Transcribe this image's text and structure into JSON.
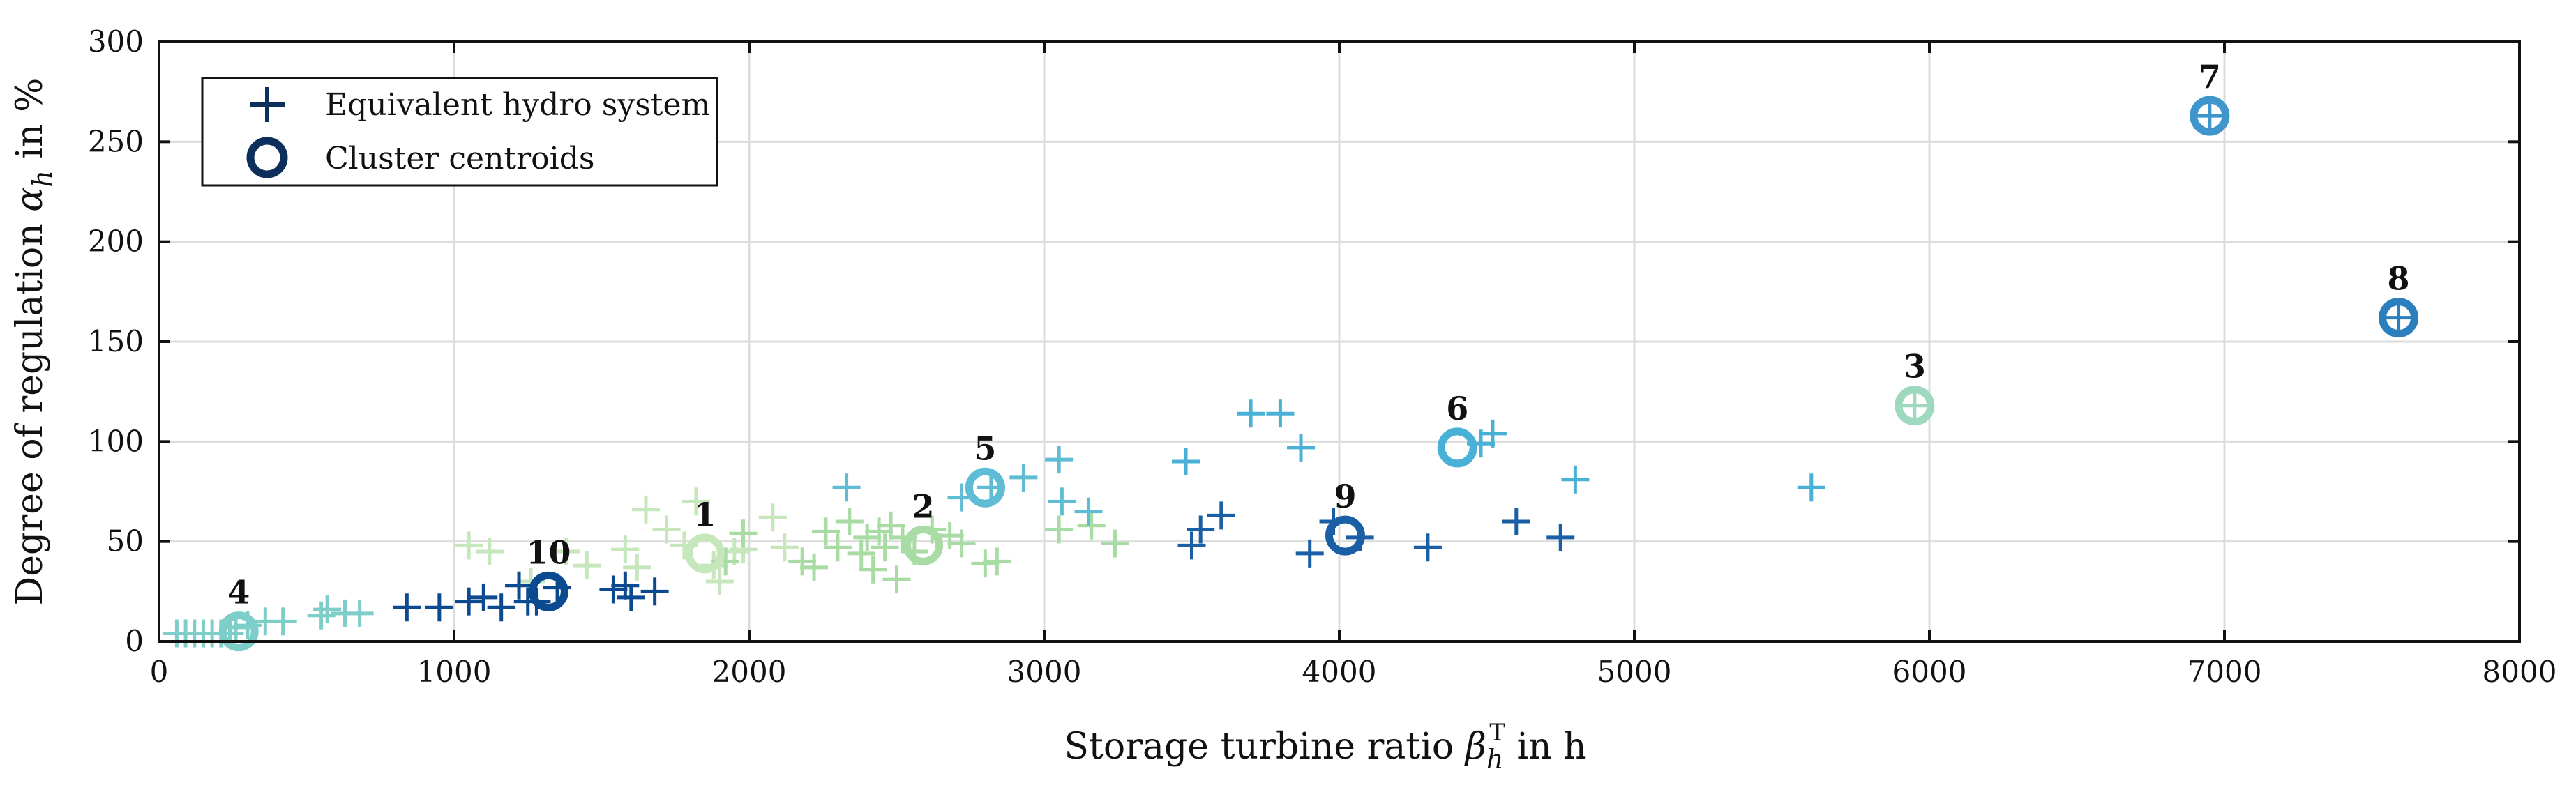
{
  "chart_data": {
    "type": "scatter",
    "xlabel": "Storage turbine ratio β_h^T in h",
    "ylabel": "Degree of regulation α_h in %",
    "xlim": [
      0,
      8000
    ],
    "ylim": [
      0,
      300
    ],
    "xticks": [
      0,
      1000,
      2000,
      3000,
      4000,
      5000,
      6000,
      7000,
      8000
    ],
    "yticks": [
      0,
      50,
      100,
      150,
      200,
      250,
      300
    ],
    "grid": true,
    "legend_placement": "top-left",
    "legend": [
      {
        "name": "Equivalent hydro system",
        "marker": "plus"
      },
      {
        "name": "Cluster centroids",
        "marker": "ring"
      }
    ],
    "series": [
      {
        "cluster": 1,
        "color": "#c6e6bc",
        "points": [
          [
            1050,
            48
          ],
          [
            1120,
            45
          ],
          [
            1260,
            30
          ],
          [
            1380,
            45
          ],
          [
            1450,
            38
          ],
          [
            1580,
            46
          ],
          [
            1620,
            37
          ],
          [
            1650,
            66
          ],
          [
            1720,
            56
          ],
          [
            1780,
            48
          ],
          [
            1820,
            70
          ],
          [
            1880,
            38
          ],
          [
            1900,
            30
          ],
          [
            1950,
            45
          ],
          [
            1980,
            46
          ],
          [
            2080,
            62
          ],
          [
            2120,
            47
          ]
        ]
      },
      {
        "cluster": 2,
        "color": "#a9dca5",
        "points": [
          [
            2180,
            40
          ],
          [
            2220,
            37
          ],
          [
            2260,
            55
          ],
          [
            2300,
            47
          ],
          [
            2340,
            60
          ],
          [
            2380,
            44
          ],
          [
            2400,
            52
          ],
          [
            2420,
            36
          ],
          [
            2440,
            55
          ],
          [
            2460,
            47
          ],
          [
            2480,
            58
          ],
          [
            2500,
            31
          ],
          [
            2520,
            52
          ],
          [
            2560,
            45
          ],
          [
            2620,
            56
          ],
          [
            2680,
            53
          ],
          [
            2720,
            49
          ],
          [
            2800,
            39
          ],
          [
            2840,
            40
          ],
          [
            3050,
            56
          ],
          [
            3160,
            58
          ],
          [
            3240,
            49
          ],
          [
            1920,
            40
          ],
          [
            1980,
            54
          ]
        ]
      },
      {
        "cluster": 3,
        "color": "#9ed9bf",
        "points": [
          [
            5950,
            118
          ]
        ]
      },
      {
        "cluster": 4,
        "color": "#7dcdc9",
        "points": [
          [
            60,
            4
          ],
          [
            90,
            4
          ],
          [
            120,
            4
          ],
          [
            150,
            4
          ],
          [
            180,
            4
          ],
          [
            210,
            4
          ],
          [
            240,
            4
          ],
          [
            260,
            7
          ],
          [
            300,
            8
          ],
          [
            360,
            10
          ],
          [
            420,
            10
          ],
          [
            550,
            13
          ],
          [
            570,
            16
          ],
          [
            630,
            14
          ],
          [
            680,
            14
          ]
        ]
      },
      {
        "cluster": 5,
        "color": "#5ebcd4",
        "points": [
          [
            2330,
            77
          ],
          [
            2720,
            72
          ],
          [
            2820,
            77
          ],
          [
            2930,
            82
          ],
          [
            3050,
            91
          ],
          [
            3060,
            70
          ],
          [
            3150,
            65
          ]
        ]
      },
      {
        "cluster": 6,
        "color": "#4ab1d6",
        "points": [
          [
            3480,
            90
          ],
          [
            3700,
            114
          ],
          [
            3800,
            114
          ],
          [
            3870,
            97
          ],
          [
            4480,
            99
          ],
          [
            4520,
            104
          ],
          [
            4800,
            81
          ],
          [
            5600,
            77
          ]
        ]
      },
      {
        "cluster": 7,
        "color": "#3e96cc",
        "points": [
          [
            6950,
            263
          ]
        ]
      },
      {
        "cluster": 8,
        "color": "#2b7fbf",
        "points": [
          [
            7590,
            162
          ]
        ]
      },
      {
        "cluster": 9,
        "color": "#1a5fa5",
        "points": [
          [
            3500,
            48
          ],
          [
            3530,
            56
          ],
          [
            3600,
            63
          ],
          [
            3900,
            44
          ],
          [
            3980,
            60
          ],
          [
            4070,
            52
          ],
          [
            4300,
            47
          ],
          [
            4600,
            60
          ],
          [
            4750,
            52
          ]
        ]
      },
      {
        "cluster": 10,
        "color": "#0c4a90",
        "points": [
          [
            840,
            17
          ],
          [
            950,
            17
          ],
          [
            1050,
            20
          ],
          [
            1100,
            22
          ],
          [
            1160,
            17
          ],
          [
            1220,
            28
          ],
          [
            1250,
            20
          ],
          [
            1280,
            20
          ],
          [
            1350,
            27
          ],
          [
            1540,
            26
          ],
          [
            1580,
            28
          ],
          [
            1600,
            22
          ],
          [
            1680,
            25
          ]
        ]
      }
    ],
    "centroids": [
      {
        "label": "1",
        "x": 1850,
        "y": 44,
        "color": "#c6e6bc"
      },
      {
        "label": "2",
        "x": 2590,
        "y": 48,
        "color": "#a9dca5"
      },
      {
        "label": "3",
        "x": 5950,
        "y": 118,
        "color": "#9ed9bf"
      },
      {
        "label": "4",
        "x": 270,
        "y": 5,
        "color": "#7dcdc9"
      },
      {
        "label": "5",
        "x": 2800,
        "y": 77,
        "color": "#5ebcd4"
      },
      {
        "label": "6",
        "x": 4400,
        "y": 97,
        "color": "#4ab1d6"
      },
      {
        "label": "7",
        "x": 6950,
        "y": 263,
        "color": "#3e96cc"
      },
      {
        "label": "8",
        "x": 7590,
        "y": 162,
        "color": "#2b7fbf"
      },
      {
        "label": "9",
        "x": 4020,
        "y": 53,
        "color": "#1a5fa5"
      },
      {
        "label": "10",
        "x": 1320,
        "y": 25,
        "color": "#0c4a90"
      }
    ]
  }
}
